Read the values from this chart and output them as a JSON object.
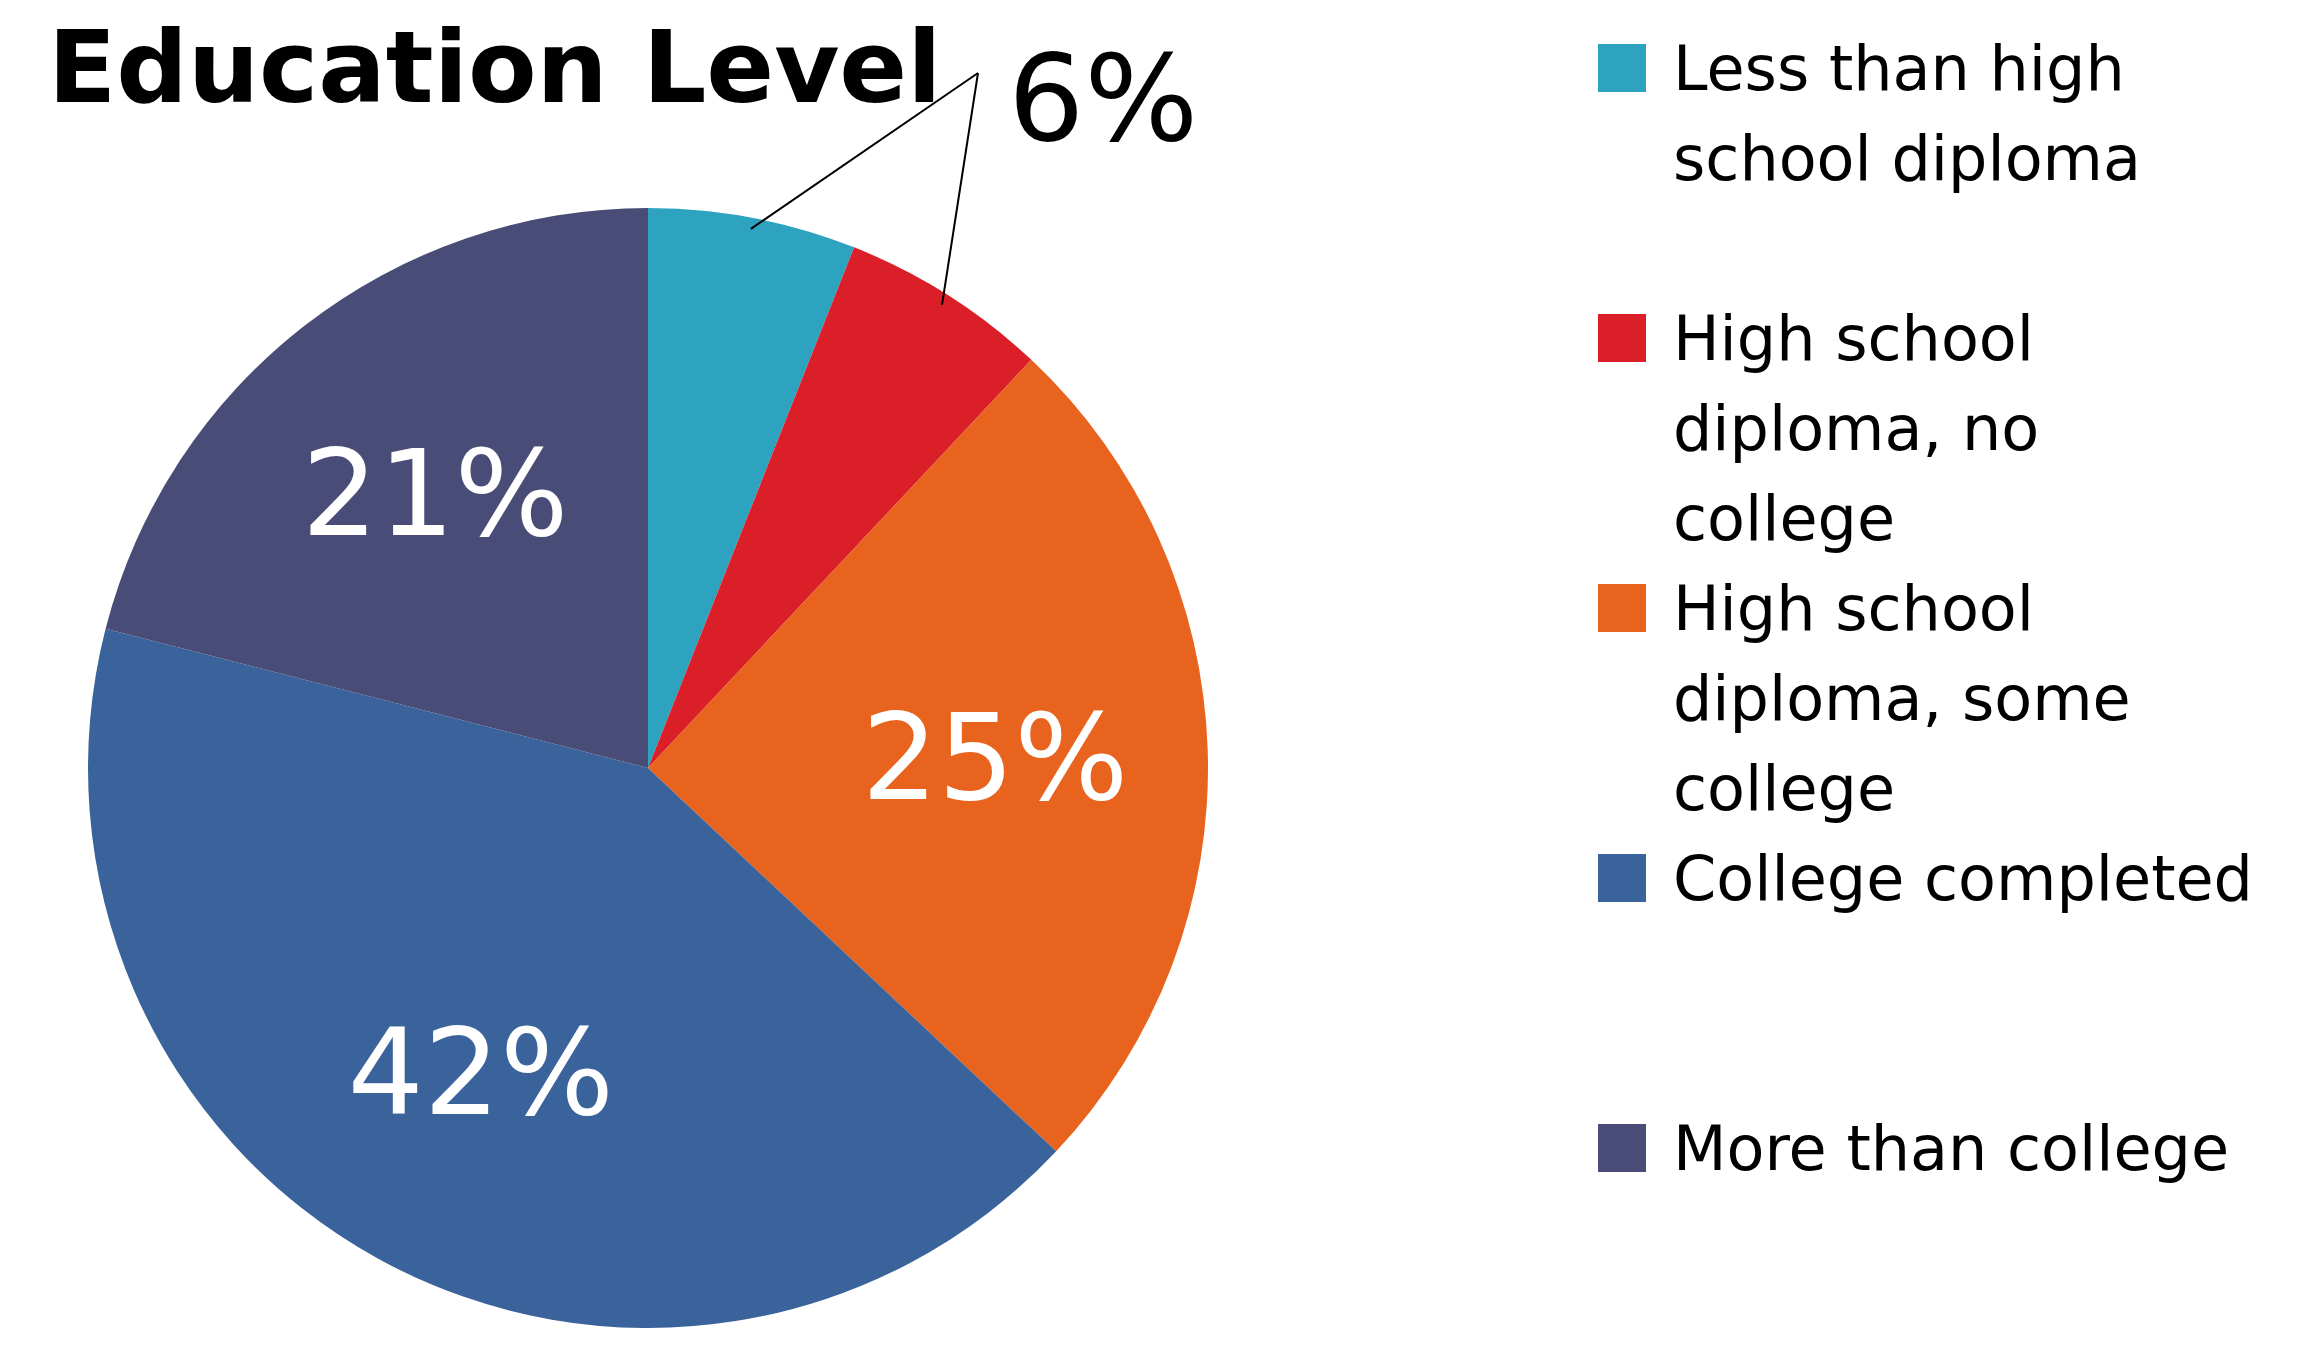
{
  "chart_data": {
    "type": "pie",
    "title": "Education Level",
    "categories": [
      "Less than high school diploma",
      "High school diploma, no college",
      "High school diploma, some college",
      "College completed",
      "More than college"
    ],
    "values": [
      6,
      6,
      25,
      42,
      21
    ],
    "colors": [
      "#2ea3bf",
      "#da1f29",
      "#e8641e",
      "#3a639c",
      "#484c77"
    ],
    "value_labels": [
      "6%",
      null,
      "25%",
      "42%",
      "21%"
    ],
    "legend": "right"
  }
}
